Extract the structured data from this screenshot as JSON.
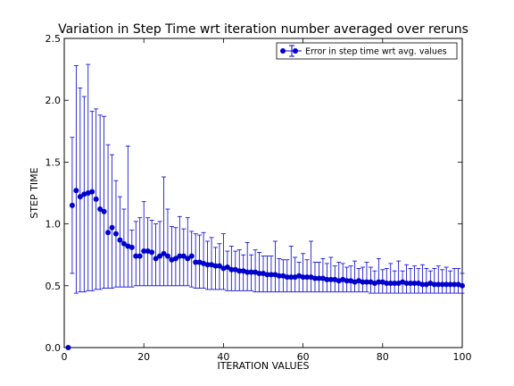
{
  "chart_data": {
    "type": "scatter",
    "title": "Variation in Step Time wrt iteration number averaged over reruns",
    "xlabel": "ITERATION VALUES",
    "ylabel": "STEP TIME",
    "xlim": [
      0,
      100
    ],
    "ylim": [
      0.0,
      2.5
    ],
    "xticks": [
      0,
      20,
      40,
      60,
      80,
      100
    ],
    "xtick_labels": [
      "0",
      "20",
      "40",
      "60",
      "80",
      "100"
    ],
    "yticks": [
      0.0,
      0.5,
      1.0,
      1.5,
      2.0,
      2.5
    ],
    "ytick_labels": [
      "0.0",
      "0.5",
      "1.0",
      "1.5",
      "2.0",
      "2.5"
    ],
    "grid": false,
    "legend_position": "top-right",
    "colors": {
      "series": "#0000cc"
    },
    "series": [
      {
        "name": "Error in step time wrt avg. values",
        "x": [
          1,
          2,
          3,
          4,
          5,
          6,
          7,
          8,
          9,
          10,
          11,
          12,
          13,
          14,
          15,
          16,
          17,
          18,
          19,
          20,
          21,
          22,
          23,
          24,
          25,
          26,
          27,
          28,
          29,
          30,
          31,
          32,
          33,
          34,
          35,
          36,
          37,
          38,
          39,
          40,
          41,
          42,
          43,
          44,
          45,
          46,
          47,
          48,
          49,
          50,
          51,
          52,
          53,
          54,
          55,
          56,
          57,
          58,
          59,
          60,
          61,
          62,
          63,
          64,
          65,
          66,
          67,
          68,
          69,
          70,
          71,
          72,
          73,
          74,
          75,
          76,
          77,
          78,
          79,
          80,
          81,
          82,
          83,
          84,
          85,
          86,
          87,
          88,
          89,
          90,
          91,
          92,
          93,
          94,
          95,
          96,
          97,
          98,
          99,
          100
        ],
        "y": [
          0.0,
          1.15,
          1.27,
          1.22,
          1.24,
          1.25,
          1.26,
          1.2,
          1.12,
          1.1,
          0.93,
          0.97,
          0.92,
          0.87,
          0.84,
          0.82,
          0.81,
          0.74,
          0.74,
          0.78,
          0.78,
          0.77,
          0.72,
          0.74,
          0.76,
          0.74,
          0.71,
          0.72,
          0.74,
          0.74,
          0.72,
          0.74,
          0.69,
          0.69,
          0.68,
          0.67,
          0.67,
          0.66,
          0.66,
          0.64,
          0.65,
          0.63,
          0.63,
          0.62,
          0.62,
          0.61,
          0.61,
          0.61,
          0.6,
          0.6,
          0.59,
          0.59,
          0.59,
          0.58,
          0.58,
          0.57,
          0.57,
          0.57,
          0.58,
          0.57,
          0.57,
          0.57,
          0.56,
          0.56,
          0.56,
          0.55,
          0.55,
          0.55,
          0.54,
          0.55,
          0.54,
          0.54,
          0.53,
          0.54,
          0.53,
          0.53,
          0.53,
          0.52,
          0.53,
          0.53,
          0.52,
          0.52,
          0.52,
          0.52,
          0.53,
          0.52,
          0.52,
          0.52,
          0.52,
          0.51,
          0.51,
          0.52,
          0.51,
          0.51,
          0.51,
          0.51,
          0.51,
          0.51,
          0.51,
          0.5
        ],
        "err_high": [
          0.0,
          1.7,
          2.28,
          2.1,
          2.03,
          2.29,
          1.91,
          1.93,
          1.88,
          1.87,
          1.64,
          1.56,
          1.35,
          1.22,
          1.12,
          1.63,
          0.95,
          1.02,
          1.05,
          1.18,
          1.05,
          1.03,
          1.0,
          1.02,
          1.38,
          1.12,
          0.98,
          0.97,
          1.06,
          0.96,
          1.05,
          0.94,
          0.92,
          0.91,
          0.93,
          0.86,
          0.89,
          0.81,
          0.84,
          0.92,
          0.78,
          0.82,
          0.78,
          0.79,
          0.75,
          0.85,
          0.75,
          0.79,
          0.77,
          0.74,
          0.74,
          0.74,
          0.86,
          0.72,
          0.71,
          0.71,
          0.82,
          0.73,
          0.69,
          0.76,
          0.71,
          0.86,
          0.69,
          0.69,
          0.72,
          0.68,
          0.73,
          0.66,
          0.69,
          0.68,
          0.65,
          0.66,
          0.7,
          0.64,
          0.65,
          0.69,
          0.65,
          0.62,
          0.72,
          0.63,
          0.64,
          0.68,
          0.62,
          0.7,
          0.62,
          0.67,
          0.64,
          0.66,
          0.64,
          0.67,
          0.64,
          0.62,
          0.64,
          0.66,
          0.63,
          0.65,
          0.62,
          0.64,
          0.64,
          0.6
        ],
        "err_low": [
          0.0,
          0.6,
          0.44,
          0.45,
          0.45,
          0.46,
          0.46,
          0.47,
          0.47,
          0.48,
          0.48,
          0.48,
          0.49,
          0.49,
          0.49,
          0.49,
          0.49,
          0.5,
          0.5,
          0.5,
          0.5,
          0.5,
          0.5,
          0.5,
          0.5,
          0.5,
          0.5,
          0.5,
          0.5,
          0.5,
          0.5,
          0.49,
          0.48,
          0.48,
          0.48,
          0.47,
          0.47,
          0.47,
          0.47,
          0.47,
          0.46,
          0.46,
          0.46,
          0.46,
          0.46,
          0.46,
          0.46,
          0.45,
          0.45,
          0.45,
          0.45,
          0.45,
          0.45,
          0.45,
          0.45,
          0.45,
          0.45,
          0.45,
          0.45,
          0.45,
          0.45,
          0.45,
          0.45,
          0.45,
          0.45,
          0.45,
          0.45,
          0.45,
          0.45,
          0.45,
          0.45,
          0.45,
          0.45,
          0.45,
          0.45,
          0.45,
          0.44,
          0.44,
          0.44,
          0.44,
          0.44,
          0.44,
          0.44,
          0.44,
          0.44,
          0.44,
          0.44,
          0.44,
          0.44,
          0.44,
          0.44,
          0.44,
          0.44,
          0.44,
          0.44,
          0.44,
          0.44,
          0.44,
          0.44,
          0.44
        ]
      }
    ]
  }
}
